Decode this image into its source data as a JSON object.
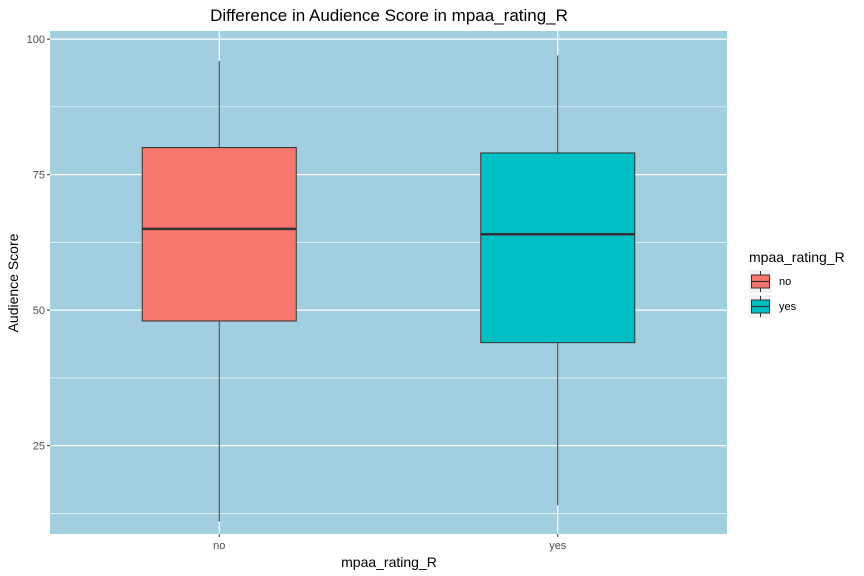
{
  "chart_data": {
    "type": "boxplot",
    "title": "Difference in Audience Score in mpaa_rating_R",
    "xlabel": "mpaa_rating_R",
    "ylabel": "Audience Score",
    "categories": [
      "no",
      "yes"
    ],
    "boxes": [
      {
        "category": "no",
        "min": 11,
        "q1": 48,
        "median": 65,
        "q3": 80,
        "max": 96,
        "color": "#F8766D"
      },
      {
        "category": "yes",
        "min": 14,
        "q1": 44,
        "median": 64,
        "q3": 79,
        "max": 97,
        "color": "#00BFC4"
      }
    ],
    "y_ticks": [
      25,
      50,
      75,
      100
    ],
    "y_tick_labels": [
      "25",
      "50",
      "75",
      "100"
    ],
    "ylim": [
      8.7,
      101.5
    ],
    "grid": true,
    "panel_background": "#A1CFE0",
    "legend": {
      "title": "mpaa_rating_R",
      "position": "right",
      "items": [
        {
          "label": "no",
          "color": "#F8766D"
        },
        {
          "label": "yes",
          "color": "#00BFC4"
        }
      ]
    }
  }
}
